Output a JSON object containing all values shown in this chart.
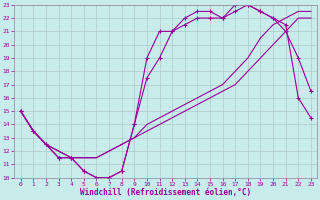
{
  "xlabel": "Windchill (Refroidissement éolien,°C)",
  "bg_color": "#c8ecec",
  "grid_color": "#b0c8c8",
  "line_color": "#990099",
  "xlim": [
    -0.5,
    23.5
  ],
  "ylim": [
    10,
    23
  ],
  "xticks": [
    0,
    1,
    2,
    3,
    4,
    5,
    6,
    7,
    8,
    9,
    10,
    11,
    12,
    13,
    14,
    15,
    16,
    17,
    18,
    19,
    20,
    21,
    22,
    23
  ],
  "yticks": [
    10,
    11,
    12,
    13,
    14,
    15,
    16,
    17,
    18,
    19,
    20,
    21,
    22,
    23
  ],
  "line1_x": [
    0,
    1,
    2,
    3,
    4,
    5,
    6,
    7,
    8,
    9,
    10,
    11,
    12,
    13,
    14,
    15,
    16,
    17,
    18,
    19,
    20,
    21,
    22,
    23
  ],
  "line1_y": [
    15,
    13.5,
    12.5,
    11.5,
    11.5,
    10.5,
    10.0,
    10.0,
    10.5,
    14.0,
    19.0,
    21.0,
    21.0,
    22.0,
    22.5,
    22.5,
    22.0,
    23.0,
    23.0,
    22.5,
    22.0,
    21.0,
    19.0,
    16.5
  ],
  "line1_markers": true,
  "line2_x": [
    0,
    1,
    2,
    3,
    4,
    5,
    6,
    7,
    8,
    9,
    10,
    11,
    12,
    13,
    14,
    15,
    16,
    17,
    18,
    19,
    20,
    21,
    22,
    23
  ],
  "line2_y": [
    15,
    13.5,
    12.5,
    11.5,
    11.5,
    10.5,
    10.0,
    10.0,
    10.5,
    14.0,
    17.5,
    19.0,
    21.0,
    21.5,
    22.0,
    22.0,
    22.0,
    22.5,
    23.0,
    22.5,
    22.0,
    21.5,
    16.0,
    14.5
  ],
  "line2_markers": true,
  "line3_x": [
    0,
    1,
    2,
    3,
    4,
    5,
    6,
    7,
    8,
    9,
    10,
    11,
    12,
    13,
    14,
    15,
    16,
    17,
    18,
    19,
    20,
    21,
    22,
    23
  ],
  "line3_y": [
    15,
    13.5,
    12.5,
    12.0,
    11.5,
    11.5,
    11.5,
    12.0,
    12.5,
    13.0,
    13.5,
    14.0,
    14.5,
    15.0,
    15.5,
    16.0,
    16.5,
    17.0,
    18.0,
    19.0,
    20.0,
    21.0,
    22.0,
    22.0
  ],
  "line3_markers": false,
  "line4_x": [
    0,
    1,
    2,
    3,
    4,
    5,
    6,
    7,
    8,
    9,
    10,
    11,
    12,
    13,
    14,
    15,
    16,
    17,
    18,
    19,
    20,
    21,
    22,
    23
  ],
  "line4_y": [
    15,
    13.5,
    12.5,
    12.0,
    11.5,
    11.5,
    11.5,
    12.0,
    12.5,
    13.0,
    14.0,
    14.5,
    15.0,
    15.5,
    16.0,
    16.5,
    17.0,
    18.0,
    19.0,
    20.5,
    21.5,
    22.0,
    22.5,
    22.5
  ],
  "line4_markers": false
}
